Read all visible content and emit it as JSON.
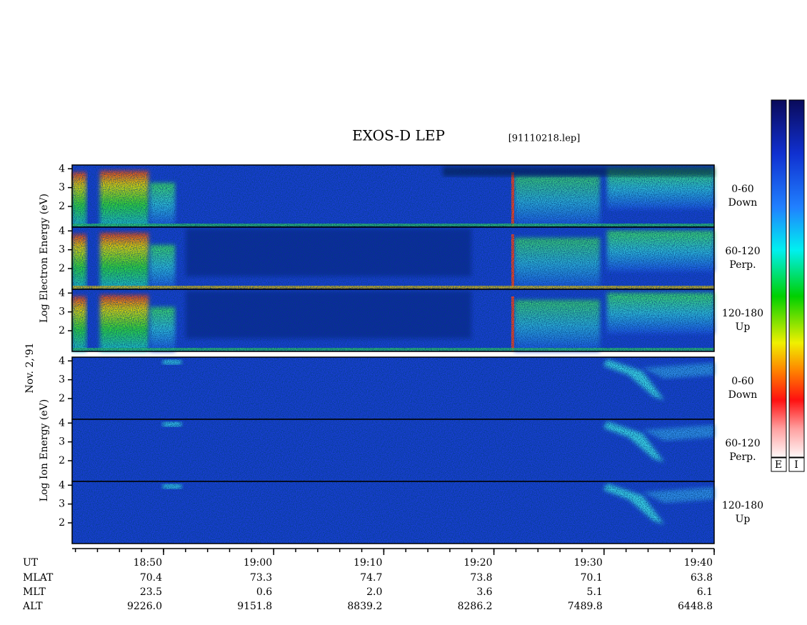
{
  "chart_data": {
    "type": "spectrogram",
    "title": "EXOS-D LEP",
    "file": "[91110218.lep]",
    "date": "Nov. 2,'91",
    "ylim": [
      0.9,
      4.2
    ],
    "yticks": [
      2,
      3,
      4
    ],
    "xlim": [
      1121.7,
      1180
    ],
    "xticks": [
      {
        "value": 1130,
        "label": "18:50"
      },
      {
        "value": 1140,
        "label": "19:00"
      },
      {
        "value": 1150,
        "label": "19:10"
      },
      {
        "value": 1160,
        "label": "19:20"
      },
      {
        "value": 1170,
        "label": "19:30"
      },
      {
        "value": 1180,
        "label": "19:40"
      }
    ],
    "groups": [
      {
        "ylabel": "Log Electron Energy (eV)",
        "panels": [
          {
            "pitch": "0-60",
            "direction": "Down"
          },
          {
            "pitch": "60-120",
            "direction": "Perp."
          },
          {
            "pitch": "120-180",
            "direction": "Up"
          }
        ]
      },
      {
        "ylabel": "Log Ion Energy (eV)",
        "panels": [
          {
            "pitch": "0-60",
            "direction": "Down"
          },
          {
            "pitch": "60-120",
            "direction": "Perp."
          },
          {
            "pitch": "120-180",
            "direction": "Up"
          }
        ]
      }
    ],
    "ephemeris": {
      "ut_label": "UT",
      "rows": [
        {
          "label": "MLAT",
          "values": [
            "70.4",
            "73.3",
            "74.7",
            "73.8",
            "70.1",
            "63.8"
          ]
        },
        {
          "label": "MLT",
          "values": [
            "23.5",
            "0.6",
            "2.0",
            "3.6",
            "5.1",
            "6.1"
          ]
        },
        {
          "label": "ALT",
          "values": [
            "9226.0",
            "9151.8",
            "8839.2",
            "8286.2",
            "7489.8",
            "6448.8"
          ]
        }
      ]
    },
    "colorbars": [
      "E",
      "I"
    ]
  }
}
